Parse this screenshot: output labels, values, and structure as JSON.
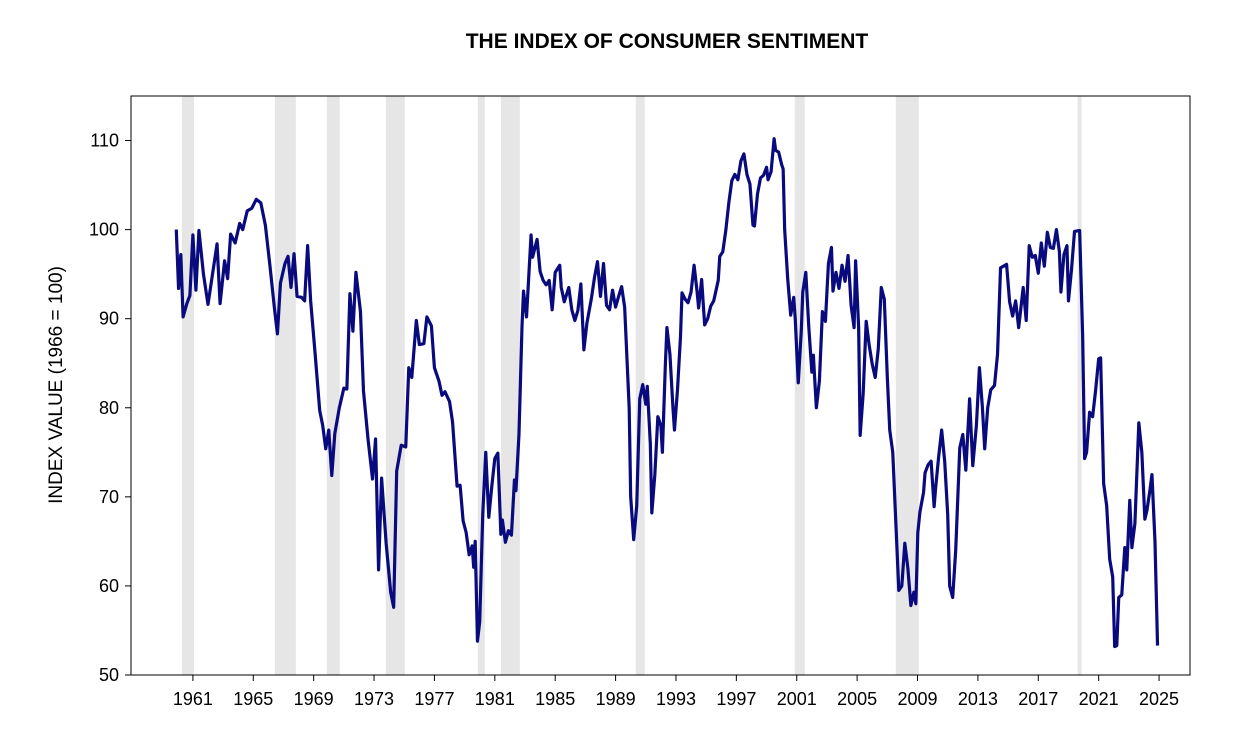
{
  "chart_data": {
    "type": "line",
    "title": "THE INDEX OF CONSUMER SENTIMENT",
    "ylabel": "INDEX VALUE (1966 = 100)",
    "color": "#0a0a7f",
    "band_color": "#e6e6e6",
    "xlim": [
      1957.4,
      2027.55
    ],
    "ylim": [
      50,
      115
    ],
    "yticks": [
      50,
      60,
      70,
      80,
      90,
      100,
      110
    ],
    "xticks": [
      {
        "value": 1961.5,
        "label": "1961"
      },
      {
        "value": 1965.5,
        "label": "1965"
      },
      {
        "value": 1969.5,
        "label": "1969"
      },
      {
        "value": 1973.5,
        "label": "1973"
      },
      {
        "value": 1977.5,
        "label": "1977"
      },
      {
        "value": 1981.5,
        "label": "1981"
      },
      {
        "value": 1985.5,
        "label": "1985"
      },
      {
        "value": 1989.5,
        "label": "1989"
      },
      {
        "value": 1993.5,
        "label": "1993"
      },
      {
        "value": 1997.5,
        "label": "1997"
      },
      {
        "value": 2001.5,
        "label": "2001"
      },
      {
        "value": 2005.5,
        "label": "2005"
      },
      {
        "value": 2009.5,
        "label": "2009"
      },
      {
        "value": 2013.5,
        "label": "2013"
      },
      {
        "value": 2017.5,
        "label": "2017"
      },
      {
        "value": 2021.5,
        "label": "2021"
      },
      {
        "value": 2025.5,
        "label": "2025"
      }
    ],
    "shaded_periods": [
      [
        1960.77,
        1961.57
      ],
      [
        1966.93,
        1968.32
      ],
      [
        1970.37,
        1971.23
      ],
      [
        1974.28,
        1975.54
      ],
      [
        1980.37,
        1980.84
      ],
      [
        1981.9,
        1983.16
      ],
      [
        1990.84,
        1991.43
      ],
      [
        2001.37,
        2002.03
      ],
      [
        2008.06,
        2009.58
      ],
      [
        2020.11,
        2020.37
      ]
    ],
    "x": [
      1960.4,
      1960.55,
      1960.7,
      1960.85,
      1961.1,
      1961.3,
      1961.5,
      1961.7,
      1961.9,
      1962.2,
      1962.5,
      1962.8,
      1963.1,
      1963.3,
      1963.6,
      1963.8,
      1964.0,
      1964.3,
      1964.6,
      1964.8,
      1965.1,
      1965.4,
      1965.7,
      1966.0,
      1966.3,
      1966.6,
      1966.9,
      1967.1,
      1967.3,
      1967.6,
      1967.8,
      1968.0,
      1968.2,
      1968.4,
      1968.7,
      1968.9,
      1969.1,
      1969.3,
      1969.6,
      1969.9,
      1970.1,
      1970.3,
      1970.5,
      1970.7,
      1970.9,
      1971.2,
      1971.5,
      1971.7,
      1971.9,
      1972.1,
      1972.3,
      1972.6,
      1972.8,
      1973.1,
      1973.4,
      1973.6,
      1973.8,
      1974.0,
      1974.3,
      1974.6,
      1974.8,
      1975.0,
      1975.3,
      1975.6,
      1975.8,
      1976.0,
      1976.3,
      1976.5,
      1976.8,
      1977.0,
      1977.3,
      1977.5,
      1977.8,
      1978.0,
      1978.2,
      1978.5,
      1978.7,
      1979.0,
      1979.2,
      1979.4,
      1979.6,
      1979.8,
      1980.0,
      1980.1,
      1980.2,
      1980.35,
      1980.5,
      1980.7,
      1980.9,
      1981.1,
      1981.3,
      1981.5,
      1981.7,
      1981.9,
      1982.0,
      1982.2,
      1982.4,
      1982.6,
      1982.8,
      1982.9,
      1983.1,
      1983.3,
      1983.4,
      1983.6,
      1983.9,
      1984.0,
      1984.3,
      1984.5,
      1984.7,
      1984.9,
      1985.1,
      1985.3,
      1985.5,
      1985.8,
      1985.9,
      1986.1,
      1986.4,
      1986.6,
      1986.8,
      1987.0,
      1987.2,
      1987.4,
      1987.6,
      1987.9,
      1988.1,
      1988.3,
      1988.5,
      1988.7,
      1988.9,
      1989.1,
      1989.3,
      1989.5,
      1989.7,
      1989.9,
      1990.1,
      1990.4,
      1990.5,
      1990.7,
      1990.9,
      1991.1,
      1991.3,
      1991.5,
      1991.6,
      1991.8,
      1991.9,
      1992.1,
      1992.3,
      1992.5,
      1992.6,
      1992.8,
      1992.9,
      1993.1,
      1993.3,
      1993.4,
      1993.6,
      1993.8,
      1993.9,
      1994.1,
      1994.3,
      1994.5,
      1994.7,
      1994.9,
      1995.0,
      1995.2,
      1995.4,
      1995.6,
      1995.8,
      1996.0,
      1996.3,
      1996.4,
      1996.6,
      1996.8,
      1997.0,
      1997.2,
      1997.4,
      1997.6,
      1997.8,
      1998.0,
      1998.2,
      1998.4,
      1998.6,
      1998.7,
      1998.9,
      1999.1,
      1999.3,
      1999.5,
      1999.6,
      1999.8,
      2000.0,
      2000.1,
      2000.3,
      2000.5,
      2000.6,
      2000.7,
      2000.9,
      2001.1,
      2001.3,
      2001.4,
      2001.6,
      2001.8,
      2001.9,
      2002.1,
      2002.3,
      2002.5,
      2002.6,
      2002.8,
      2003.0,
      2003.2,
      2003.4,
      2003.5,
      2003.6,
      2003.8,
      2003.9,
      2004.1,
      2004.3,
      2004.5,
      2004.7,
      2004.9,
      2005.1,
      2005.3,
      2005.4,
      2005.6,
      2005.7,
      2005.9,
      2006.1,
      2006.3,
      2006.5,
      2006.7,
      2006.9,
      2007.1,
      2007.3,
      2007.5,
      2007.66,
      2007.86,
      2008.26,
      2008.46,
      2008.66,
      2008.86,
      2009.06,
      2009.26,
      2009.39,
      2009.52,
      2009.66,
      2009.9,
      2010.0,
      2010.2,
      2010.4,
      2010.6,
      2010.7,
      2010.9,
      2011.1,
      2011.3,
      2011.5,
      2011.63,
      2011.83,
      2012.03,
      2012.3,
      2012.5,
      2012.7,
      2012.95,
      2013.16,
      2013.4,
      2013.6,
      2013.8,
      2013.95,
      2014.15,
      2014.35,
      2014.6,
      2014.8,
      2015.0,
      2015.2,
      2015.4,
      2015.6,
      2015.8,
      2016.0,
      2016.2,
      2016.5,
      2016.7,
      2016.9,
      2017.1,
      2017.3,
      2017.5,
      2017.7,
      2017.9,
      2018.1,
      2018.3,
      2018.5,
      2018.7,
      2018.9,
      2019.0,
      2019.2,
      2019.4,
      2019.5,
      2019.7,
      2019.9,
      2020.24,
      2020.44,
      2020.57,
      2020.7,
      2020.9,
      2021.1,
      2021.3,
      2021.5,
      2021.63,
      2021.83,
      2022.03,
      2022.23,
      2022.43,
      2022.56,
      2022.7,
      2022.83,
      2023.03,
      2023.23,
      2023.36,
      2023.56,
      2023.7,
      2023.9,
      2024.16,
      2024.36,
      2024.56,
      2024.7,
      2024.9,
      2025.03,
      2025.23,
      2025.4
    ],
    "values": [
      100,
      93.4,
      97.2,
      90.2,
      91.7,
      92.6,
      99.4,
      93.2,
      99.9,
      95,
      91.6,
      95,
      98.4,
      91.7,
      96.5,
      94.5,
      99.5,
      98.5,
      100.7,
      100,
      102.1,
      102.4,
      103.4,
      103,
      100.5,
      96,
      91.2,
      88.3,
      94,
      96.2,
      97,
      93.5,
      97.3,
      92.5,
      92.4,
      92,
      98.2,
      92,
      86,
      79.7,
      78,
      75.4,
      77.5,
      72.4,
      77.1,
      80,
      82.2,
      82.1,
      92.8,
      88.6,
      95.2,
      90.8,
      81.9,
      76.5,
      72,
      76.5,
      61.8,
      72.1,
      64.8,
      59.3,
      57.6,
      72.9,
      75.8,
      75.6,
      84.5,
      83.4,
      89.8,
      87.1,
      87.2,
      90.2,
      89.2,
      84.5,
      83,
      81.4,
      81.8,
      80.7,
      78.4,
      71.2,
      71.3,
      67.3,
      66,
      63.5,
      64.5,
      62.1,
      65,
      53.8,
      56,
      68,
      75,
      67.7,
      71.2,
      74.3,
      74.9,
      65.8,
      67.4,
      64.9,
      66.2,
      65.7,
      71.9,
      70.7,
      77,
      89.1,
      93.1,
      90.2,
      99.4,
      96.9,
      98.9,
      95.3,
      94.3,
      93.8,
      94.3,
      91,
      95.2,
      96,
      93.5,
      91.9,
      93.5,
      91,
      89.8,
      90.9,
      93.9,
      86.5,
      89.5,
      92.3,
      94.6,
      96.4,
      92.5,
      96.2,
      91.5,
      91,
      93.2,
      91.3,
      92.5,
      93.6,
      91.3,
      80,
      70,
      65.2,
      69,
      81,
      82.6,
      80.4,
      82.4,
      76,
      68.2,
      72.5,
      79,
      78,
      75,
      85,
      89,
      86,
      80,
      77.5,
      82,
      88,
      92.9,
      92.2,
      91.8,
      93,
      96,
      93,
      91.2,
      94.4,
      89.3,
      90,
      91.4,
      92,
      94.3,
      97,
      97.5,
      99.9,
      103,
      105.5,
      106.2,
      105.6,
      107.7,
      108.5,
      106.2,
      105.1,
      100.5,
      100.4,
      104,
      105.8,
      106.1,
      107,
      105.6,
      106.5,
      110.2,
      108.9,
      108.7,
      107.3,
      106.8,
      100,
      94.5,
      90.4,
      92.4,
      90,
      82.8,
      88.6,
      93,
      95.2,
      89,
      84,
      85.9,
      80,
      83,
      90.8,
      89.7,
      93,
      96.2,
      98,
      93.1,
      95.2,
      93.4,
      96,
      94.2,
      97.1,
      91.5,
      89,
      96.5,
      89,
      76.9,
      81.6,
      89.7,
      87,
      84.9,
      83.4,
      86.6,
      93.5,
      92.2,
      83.4,
      77.5,
      75,
      59.5,
      60,
      64.8,
      62,
      57.8,
      59.3,
      58,
      66,
      68.3,
      70.5,
      72.7,
      73.6,
      74,
      68.9,
      71,
      74.5,
      77.5,
      74,
      68,
      60,
      58.7,
      64,
      75.5,
      77,
      73,
      81,
      73.5,
      78,
      84.5,
      80,
      75.4,
      80,
      82,
      82.5,
      86,
      95.7,
      95.9,
      96.1,
      91.9,
      90.3,
      92,
      89,
      93.5,
      89.8,
      98.2,
      96.9,
      97.1,
      95.1,
      98.5,
      95.9,
      99.7,
      98,
      97.9,
      100,
      97.5,
      93,
      97.2,
      98.2,
      92,
      95.5,
      99.8,
      99.9,
      88,
      74.3,
      75,
      79.5,
      79,
      82,
      85.5,
      85.6,
      71.5,
      69,
      63,
      61,
      53.2,
      53.3,
      58.7,
      59,
      64.3,
      61.8,
      69.6,
      64.3,
      67,
      78.3,
      75,
      67.5,
      68.5,
      70.8,
      72.5,
      65,
      53.3
    ]
  }
}
